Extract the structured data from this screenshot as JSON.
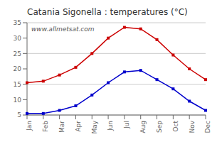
{
  "chart_data": {
    "type": "line",
    "title": "Catania Sigonella : temperatures (°C)",
    "categories": [
      "Jan",
      "Feb",
      "Mar",
      "Apr",
      "May",
      "Jun",
      "Jul",
      "Aug",
      "Sep",
      "Oct",
      "Nov",
      "Dec"
    ],
    "series": [
      {
        "color": "#cc0000",
        "values": [
          15.5,
          16.0,
          18.0,
          20.5,
          25.0,
          30.0,
          33.5,
          33.0,
          29.5,
          24.5,
          20.0,
          16.5
        ]
      },
      {
        "color": "#0000cc",
        "values": [
          5.5,
          5.5,
          6.5,
          8.0,
          11.5,
          15.5,
          19.0,
          19.5,
          16.5,
          13.5,
          9.5,
          6.5
        ]
      }
    ],
    "ylim": [
      5,
      35
    ],
    "yticks": [
      5,
      10,
      15,
      20,
      25,
      30,
      35
    ],
    "grid": true,
    "marker": "square",
    "annotations": [
      "www.allmetsat.com"
    ]
  }
}
